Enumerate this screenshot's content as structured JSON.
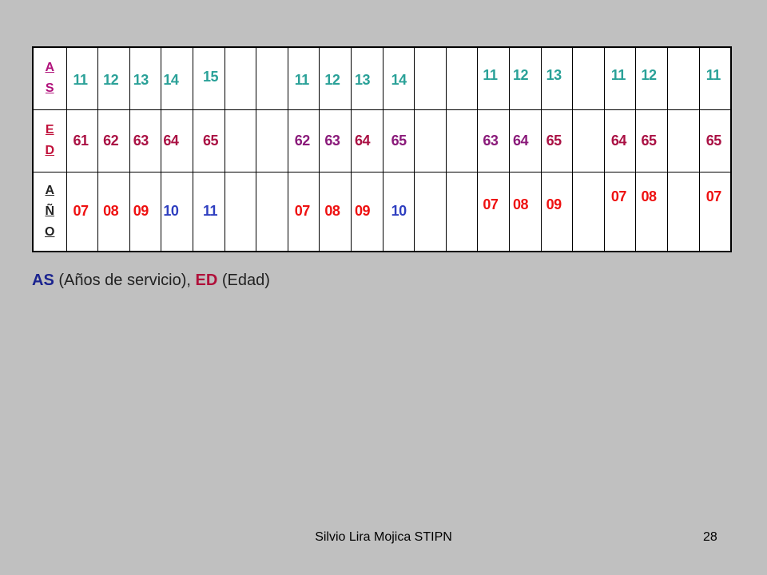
{
  "table": {
    "row_labels": {
      "as": [
        "A",
        "S"
      ],
      "ed": [
        "E",
        "D"
      ],
      "year": [
        "A",
        "Ñ",
        "O"
      ]
    },
    "cells": [
      {
        "as": "11",
        "ed": "61",
        "year": "07"
      },
      {
        "as": "12",
        "ed": "62",
        "year": "08"
      },
      {
        "as": "13",
        "ed": "63",
        "year": "09"
      },
      {
        "as": "14",
        "ed": "64",
        "year": "10"
      },
      {
        "as": "15",
        "ed": "65",
        "year": "11"
      },
      {
        "as": "",
        "ed": "",
        "year": ""
      },
      {
        "as": "",
        "ed": "",
        "year": ""
      },
      {
        "as": "11",
        "ed": "62",
        "year": "07"
      },
      {
        "as": "12",
        "ed": "63",
        "year": "08"
      },
      {
        "as": "13",
        "ed": "64",
        "year": "09"
      },
      {
        "as": "14",
        "ed": "65",
        "year": "10"
      },
      {
        "as": "",
        "ed": "",
        "year": ""
      },
      {
        "as": "",
        "ed": "",
        "year": ""
      },
      {
        "as": "11",
        "ed": "63",
        "year": "07"
      },
      {
        "as": "12",
        "ed": "64",
        "year": "08"
      },
      {
        "as": "13",
        "ed": "65",
        "year": "09"
      },
      {
        "as": "",
        "ed": "",
        "year": ""
      },
      {
        "as": "11",
        "ed": "64",
        "year": "07"
      },
      {
        "as": "12",
        "ed": "65",
        "year": "08"
      },
      {
        "as": "",
        "ed": "",
        "year": ""
      },
      {
        "as": "11",
        "ed": "65",
        "year": "07"
      }
    ]
  },
  "legend": {
    "as_abbr": "AS",
    "as_text": " (Años de servicio), ",
    "ed_abbr": "ED",
    "ed_text": " (Edad)"
  },
  "footer": {
    "text": "Silvio Lira Mojica  STIPN",
    "page": "28"
  },
  "colors": {
    "background": "#c0c0c0",
    "as_values": "#2aa198",
    "ed_values": "#aa1144",
    "year_values": "#ee1111",
    "year_values_alt": "#2f3fc0"
  }
}
